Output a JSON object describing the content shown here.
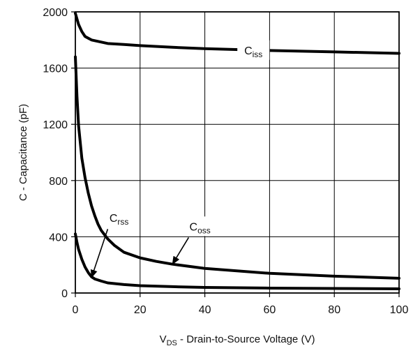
{
  "chart_data": {
    "type": "line",
    "title": "",
    "xlabel": {
      "main": "V",
      "sub": "DS",
      "rest": " - Drain-to-Source Voltage (V)"
    },
    "ylabel": "C - Capacitance (pF)",
    "xlim": [
      0,
      100
    ],
    "ylim": [
      0,
      2000
    ],
    "xticks": [
      0,
      20,
      40,
      60,
      80,
      100
    ],
    "yticks": [
      0,
      400,
      800,
      1200,
      1600,
      2000
    ],
    "grid": true,
    "series": [
      {
        "name": {
          "main": "C",
          "sub": "iss"
        },
        "x": [
          0,
          1,
          2,
          3,
          5,
          7,
          10,
          15,
          20,
          30,
          40,
          60,
          80,
          100
        ],
        "y": [
          1990,
          1910,
          1860,
          1825,
          1800,
          1790,
          1775,
          1768,
          1760,
          1748,
          1738,
          1725,
          1715,
          1705
        ]
      },
      {
        "name": {
          "main": "C",
          "sub": "oss"
        },
        "x": [
          0,
          0.5,
          1,
          2,
          3,
          4,
          5,
          6,
          7,
          8,
          9,
          10,
          12,
          15,
          20,
          25,
          30,
          40,
          60,
          80,
          100
        ],
        "y": [
          1680,
          1400,
          1190,
          960,
          820,
          710,
          620,
          550,
          490,
          445,
          415,
          385,
          340,
          290,
          250,
          225,
          205,
          175,
          140,
          120,
          105
        ]
      },
      {
        "name": {
          "main": "C",
          "sub": "rss"
        },
        "x": [
          0,
          0.5,
          1,
          2,
          3,
          4,
          5,
          6,
          8,
          10,
          15,
          20,
          30,
          40,
          60,
          80,
          100
        ],
        "y": [
          420,
          360,
          310,
          240,
          185,
          145,
          115,
          100,
          85,
          72,
          60,
          52,
          45,
          40,
          35,
          32,
          30
        ]
      }
    ],
    "annotations": [
      {
        "label": {
          "main": "C",
          "sub": "rss"
        },
        "target": [
          5,
          110
        ]
      },
      {
        "label": {
          "main": "C",
          "sub": "oss"
        },
        "target": [
          30,
          205
        ]
      }
    ]
  }
}
